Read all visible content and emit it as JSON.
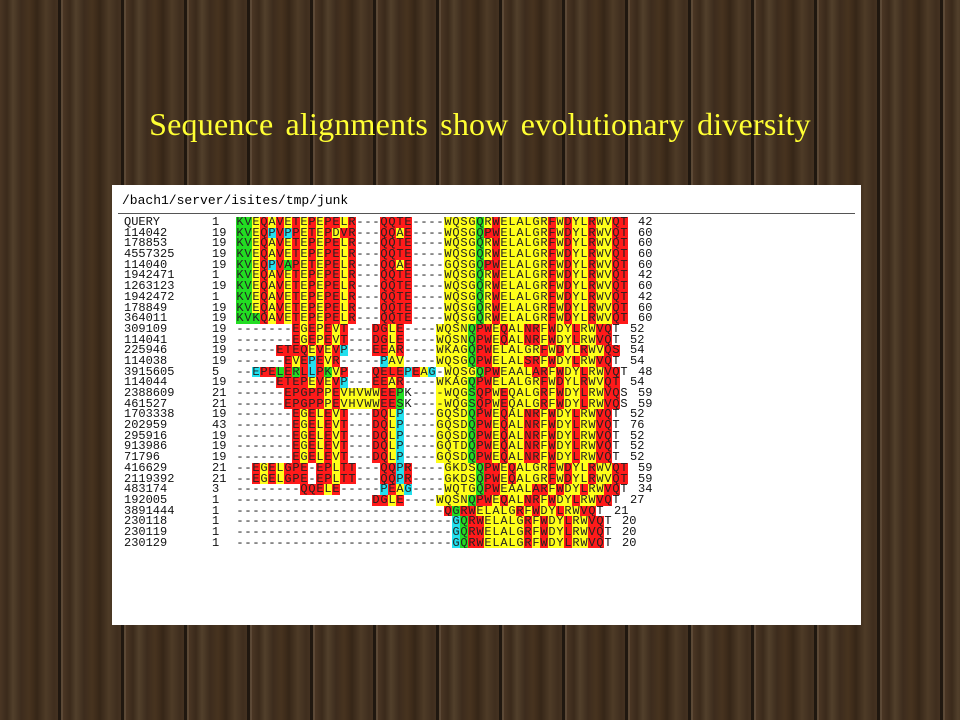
{
  "slide": {
    "title": "Sequence alignments show evolutionary diversity"
  },
  "panel": {
    "path": "/bach1/server/isites/tmp/junk"
  },
  "colors": {
    "R": "#ff1a1a",
    "Y": "#ffff1a",
    "G": "#22dd22",
    "C": "#22e0ee"
  },
  "alignment": [
    {
      "id": "QUERY",
      "start": "1",
      "end": "42",
      "seq": "KVEQAVETEPEPELR---QQTE----WQSGQRWELALGRFWDYLRWVQT",
      "col": "GGYRYRYRYRYRRYR---RRRR----YYYYGYRYYYYYYRYRYYRYYRR"
    },
    {
      "id": "114042",
      "start": "19",
      "end": "60",
      "seq": "KVEQPVPPETEPDVR---QQAE----WQSGQPWELALGRFWDYLRWVQT",
      "col": "GGYRCRCRYRYRYRR---RRYR----YYYYGRRYYYYYYRYRYYRYYRR"
    },
    {
      "id": "178853",
      "start": "19",
      "end": "60",
      "seq": "KVEQAVETEPEPELR---QQTE----WQSGQRWELALGRFWDYLRWVQT",
      "col": "GGYRYRYRYRYRRYR---RRRR----YYYYGYRYYYYYYRYRYYRYYRR"
    },
    {
      "id": "4557325",
      "start": "19",
      "end": "60",
      "seq": "KVEQAVETEPEPELR---QQTE----WQSGQRWELALGRFWDYLRWVQT",
      "col": "GGYRYRYRYRYRRYR---RRRR----YYYYGYRYYYYYYRYRYYRYYRR"
    },
    {
      "id": "114040",
      "start": "19",
      "end": "60",
      "seq": "KVEQPVAPETEPELR---QQAE----GQSGQPWELALGRFWDYLRWVQT",
      "col": "GGYRCRGRYRYRRYR---RRYR----YYYYGRRYYYYYYRYRYYRYYRR"
    },
    {
      "id": "1942471",
      "start": "1",
      "end": "42",
      "seq": "KVEQAVETEPEPELR---QQTE----WQSGQRWELALGRFWDYLRWVQT",
      "col": "GGYRYRYRYRYRRYR---RRRR----YYYYGYRYYYYYYRYRYYRYYRR"
    },
    {
      "id": "1263123",
      "start": "19",
      "end": "60",
      "seq": "KVEQAVETEPEPELR---QQTE----WQSGQRWELALGRFWDYLRWVQT",
      "col": "GGYRYRYRYRYRRYR---RRRR----YYYYGYRYYYYYYRYRYYRYYRR"
    },
    {
      "id": "1942472",
      "start": "1",
      "end": "42",
      "seq": "KVEQAVETEPEPELR---QQTE----WQSGQRWELALGRFWDYLRWVQT",
      "col": "GGYRYRYRYRYRRYR---RRRR----YYYYGYRYYYYYYRYRYYRYYRR"
    },
    {
      "id": "178849",
      "start": "19",
      "end": "60",
      "seq": "KVEQAVETEPEPELR---QQTE----WQSGQRWELALGRFWDYLRWVQT",
      "col": "GGYRYRYRYRYRRYR---RRRR----YYYYGYRYYYYYYRYRYYRYYRR"
    },
    {
      "id": "364011",
      "start": "19",
      "end": "60",
      "seq": "KVKQAVETEPEPELR---QQTE----WQSGQRWELALGRFWDYLRWVQT",
      "col": "GGGRYRYRYRYRRYR---RRRR----YYYYGYRYYYYYYRYRYYRYYRR"
    },
    {
      "id": "309109",
      "start": "19",
      "end": "52",
      "seq": "-------EGEPEVT---DGLE----WQSNQPWEQALNRFWDYLRWVQT",
      "col": "-------RYRYRYR---RRYR----YYYYGRRYRYYRRYRYYRYYRR"
    },
    {
      "id": "114041",
      "start": "19",
      "end": "52",
      "seq": "-------EGEPEVT---DGLE----WQSNQPWEQALNRFWDYLRWVQT",
      "col": "-------RYRYRYR---RRYR----YYYYGRRYRYYRRYRYYRYYRR"
    },
    {
      "id": "225946",
      "start": "19",
      "end": "54",
      "seq": "-----ETEQEVEVP---EEAR----WKAGQPWELALGRFWDYLRWVQS",
      "col": "-----RRRRYRYRC---RRYR----YYYYGRRYYYYYYRYRYYRYYRR"
    },
    {
      "id": "114038",
      "start": "19",
      "end": "54",
      "seq": "------EVEPEVR-----PAV----WQSGQPWELALSRFWDYLRWVQT",
      "col": "------RYRCRYR-----CYY----YYYYGRRYYYYRRYRYYRYYRR"
    },
    {
      "id": "3915605",
      "start": "5",
      "end": "48",
      "seq": "--EPELERLLPKVP---QELEPEAG-WQSGQPWEAALARFWDYLRWVQT",
      "col": "--CRRGRGRCRGYR---RRRRCRYC-YYYYGRRYYYYRRYRYYRYYRR"
    },
    {
      "id": "114044",
      "start": "19",
      "end": "54",
      "seq": "-----ETEPEVEVP---EEAR----WKAGQPWELALGRFWDYLRWVQT",
      "col": "-----RRRRYRYRC---RRYR----YYYYGRRYYYYYYRYRYYRYYRR"
    },
    {
      "id": "2388609",
      "start": "21",
      "end": "59",
      "seq": "------EPGPPPEVHVWWEEPK----WQGSQPWEQALGRFWDYLRWVQS",
      "col": "------RRRRRYRYYYYYRRG----YYYYGRRYRYYYYRYRYYRYYRR"
    },
    {
      "id": "461527",
      "start": "21",
      "end": "59",
      "seq": "------EPGPPPEVHVWWEESK----WQGSQPWEQALGRFWDYLRWVQS",
      "col": "------RRRRRYRYYYYYRRG----YYYYGRRYRYYYYRYRYYRYYRR"
    },
    {
      "id": "1703338",
      "start": "19",
      "end": "52",
      "seq": "-------EGELEVT---DQLP----GQSDQPWEQALNRFWDYLRWVQT",
      "col": "-------RYRYRYR---RRYC----YYYYGRRYRYYRRYRYYRYYRR"
    },
    {
      "id": "202959",
      "start": "43",
      "end": "76",
      "seq": "-------EGELEVT---DQLP----GQSDQPWEQALNRFWDYLRWVQT",
      "col": "-------RYRYRYR---RRYC----YYYYGRRYRYYRRYRYYRYYRR"
    },
    {
      "id": "295916",
      "start": "19",
      "end": "52",
      "seq": "-------EGELEVT---DQLP----GQSDQPWEQALNRFWDYLRWVQT",
      "col": "-------RYRYRYR---RRYC----YYYYGRRYRYYRRYRYYRYYRR"
    },
    {
      "id": "913986",
      "start": "19",
      "end": "52",
      "seq": "-------EGELEVT---DQLP----GQTDQPWEQALNRFWDYLRWVQT",
      "col": "-------RYRYRYR---RRYC----YYYYGRRYRYYRRYRYYRYYRR"
    },
    {
      "id": "71796",
      "start": "19",
      "end": "52",
      "seq": "-------EGELEVT---DQLP----GQSDQPWEQALNRFWDYLRWVQT",
      "col": "-------RYRYRYR---RRYC----YYYYGRRYRYYRRYRYYRYYRR"
    },
    {
      "id": "416629",
      "start": "21",
      "end": "59",
      "seq": "--EGELGPE-EPLTT---QQPR----GKDSQPWEQALGRFWDYLRWVQT",
      "col": "--RYRYRRR-RRYRR---RRCR----YYYYGRRYRYYYYRYRYYRYYRR"
    },
    {
      "id": "2119392",
      "start": "21",
      "end": "59",
      "seq": "--EGELGPE-EPLTT---QQPR----GKDSQPWEQALGRFWDYLRWVQT",
      "col": "--RYRYRRR-RRYRR---RRCR----YYYYGRRYRYYYYRYRYYRYYRR"
    },
    {
      "id": "483174",
      "start": "3",
      "end": "34",
      "seq": "--------QQELE-----PEAG----WQTGQPWEAALARFWDYLRWVQT",
      "col": "--------RRRYR-----CRYC----YYYYGRRYYYYRRYRYYRYYRR"
    },
    {
      "id": "192005",
      "start": "1",
      "end": "27",
      "seq": "-----------------DGLE----WQSNQPWEQALNRFWDYLRWVQT",
      "col": "-----------------RRYR----YYYYGRRYRYYRRYRYYRYYRR"
    },
    {
      "id": "3891444",
      "start": "1",
      "end": "21",
      "seq": "--------------------------QGRWELALGRFWDYLRWVQT",
      "col": "--------------------------RGRRYYYYYRYRYYRYYRR"
    },
    {
      "id": "230118",
      "start": "1",
      "end": "20",
      "seq": "---------------------------GQRWELALGRFWDYLRWVQT",
      "col": "---------------------------CGRRYYYYYRYRYYRYYRR"
    },
    {
      "id": "230119",
      "start": "1",
      "end": "20",
      "seq": "---------------------------GQRWELALGRFWDYLRWVQT",
      "col": "---------------------------CGRRYYYYYRYRYYRYYRR"
    },
    {
      "id": "230129",
      "start": "1",
      "end": "20",
      "seq": "---------------------------GQRWELALGRFWDYLRWVQT",
      "col": "---------------------------CGRRYYYYYRYRYYRYYRR"
    }
  ]
}
